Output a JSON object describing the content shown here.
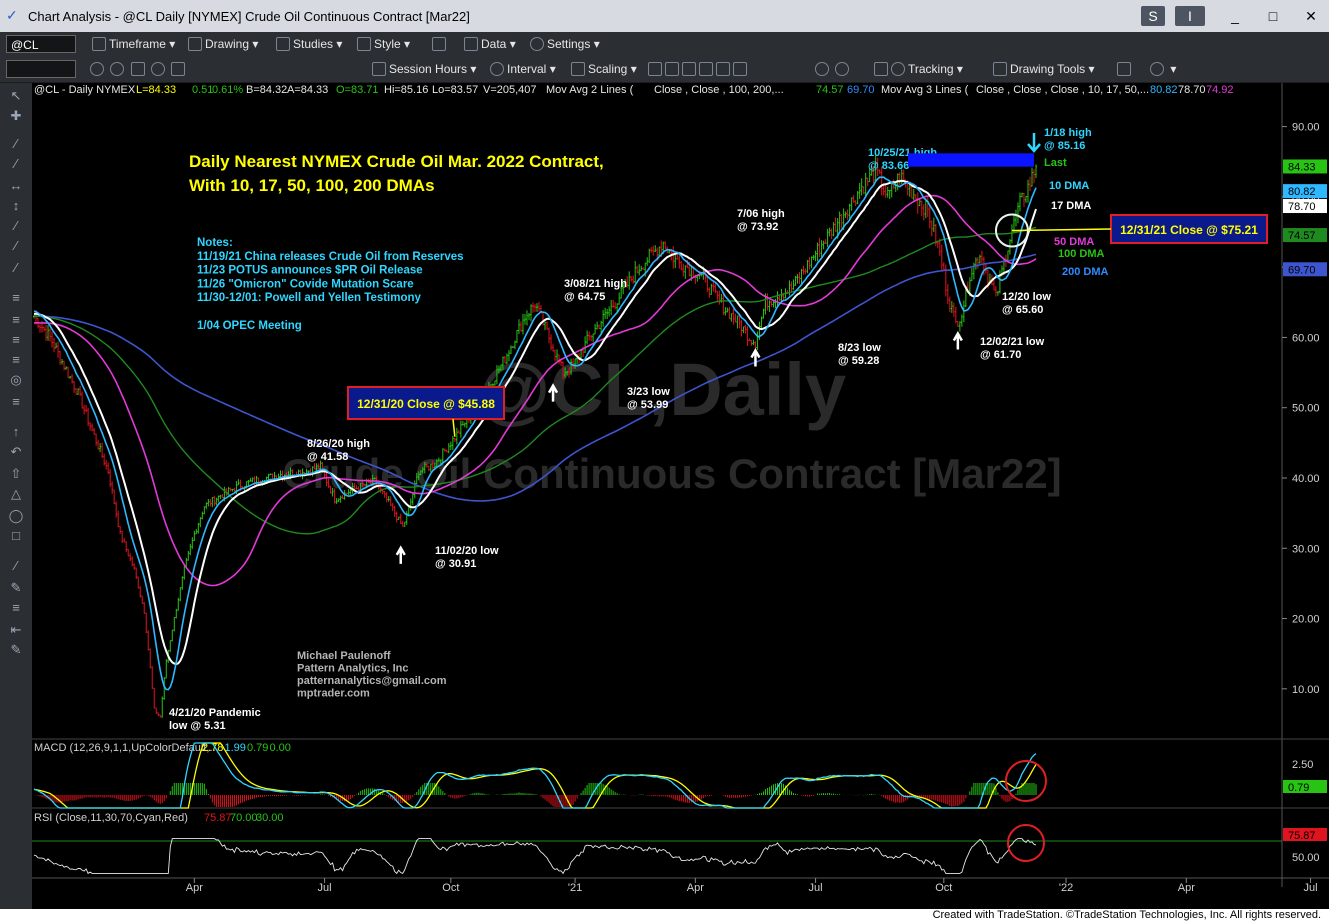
{
  "window": {
    "title": "Chart Analysis - @CL Daily [NYMEX] Crude Oil Continuous Contract [Mar22]",
    "buttons": [
      "S",
      "I",
      "_",
      "□",
      "✕"
    ]
  },
  "toolbar1": {
    "symbol": "@CL",
    "timeframe": "Timeframe",
    "drawing": "Drawing",
    "studies": "Studies",
    "style": "Style",
    "data": "Data",
    "settings": "Settings"
  },
  "toolbar2": {
    "session_hours": "Session Hours",
    "interval": "Interval",
    "scaling": "Scaling",
    "tracking": "Tracking",
    "drawing_tools": "Drawing Tools"
  },
  "status_bar": "Created with TradeStation. ©TradeStation Technologies, Inc. All rights reserved.",
  "colors": {
    "price_up": "#27c414",
    "price_down": "#e0141e",
    "dma10": "#2fb7ff",
    "dma17": "#ffffff",
    "dma50": "#e23ad7",
    "dma100": "#1f8a1f",
    "dma200": "#3d56cf",
    "annotation_yellow": "#ffff00",
    "annotation_cyan": "#2fd6ff"
  },
  "chart_data": {
    "type": "line",
    "info_line": {
      "symbol": "@CL - Daily  NYMEX",
      "last": "L=84.33",
      "change": "0.51",
      "pct": "0.61%",
      "bid": "B=84.32",
      "ask": "A=84.33",
      "open": "O=83.71",
      "high": "Hi=85.16",
      "low": "Lo=83.57",
      "volume": "V=205,407",
      "ma2": "Mov Avg 2 Lines (",
      "ma2_params": "Close ,      Close ,  100,  200,...",
      "ma2_v1": "74.57",
      "ma2_v2": "69.70",
      "ma3": "Mov Avg 3 Lines (",
      "ma3_params": "Close ,   Close ,   Close ,  10, 17, 50,...",
      "ma3_v1": "80.82",
      "ma3_v2": "78.70",
      "ma3_v3": "74.92"
    },
    "watermark": {
      "line1": "@CL,Daily",
      "line2": "Crude Oil Continuous Contract [Mar22]"
    },
    "title": "Daily Nearest NYMEX Crude Oil Mar. 2022 Contract,",
    "subtitle": "With 10, 17, 50, 100, 200 DMAs",
    "notes": [
      "Notes:",
      "11/19/21 China releases Crude Oil from Reserves",
      "11/23 POTUS announces $PR Oil Release",
      "11/26 \"Omicron\" Covide Mutation Scare",
      "11/30-12/01: Powell and Yellen Testimony",
      "",
      "1/04 OPEC Meeting"
    ],
    "author": [
      "Michael Paulenoff",
      "Pattern Analytics, Inc",
      "patternanalytics@gmail.com",
      "mptrader.com"
    ],
    "x_tick_labels": [
      "Apr",
      "Jul",
      "Oct",
      "'21",
      "Apr",
      "Jul",
      "Oct",
      "'22",
      "Apr",
      "Jul"
    ],
    "x_tick_idx": [
      80,
      145,
      208,
      270,
      330,
      390,
      454,
      515,
      575,
      637
    ],
    "y_ticks": [
      10.0,
      20.0,
      30.0,
      40.0,
      50.0,
      60.0,
      70.0,
      80.0,
      90.0
    ],
    "ylim": [
      3.0,
      94.5
    ],
    "anchors": [
      [
        0,
        63
      ],
      [
        8,
        60
      ],
      [
        15,
        56
      ],
      [
        22,
        52
      ],
      [
        30,
        46
      ],
      [
        37,
        41
      ],
      [
        43,
        32
      ],
      [
        50,
        27
      ],
      [
        55,
        21
      ],
      [
        58,
        13
      ],
      [
        60,
        7
      ],
      [
        63,
        6.0
      ],
      [
        66,
        14
      ],
      [
        70,
        20
      ],
      [
        75,
        27
      ],
      [
        80,
        32
      ],
      [
        85,
        36
      ],
      [
        93,
        37.5
      ],
      [
        103,
        39
      ],
      [
        113,
        39.8
      ],
      [
        123,
        40.5
      ],
      [
        136,
        41
      ],
      [
        143,
        41.6
      ],
      [
        150,
        37
      ],
      [
        160,
        38.5
      ],
      [
        170,
        39.5
      ],
      [
        178,
        36
      ],
      [
        184,
        33
      ],
      [
        187,
        35.5
      ],
      [
        192,
        41
      ],
      [
        200,
        42
      ],
      [
        210,
        45.8
      ],
      [
        225,
        52
      ],
      [
        235,
        57
      ],
      [
        245,
        63
      ],
      [
        250,
        64.8
      ],
      [
        257,
        60
      ],
      [
        264,
        55
      ],
      [
        269,
        56
      ],
      [
        277,
        60
      ],
      [
        290,
        65
      ],
      [
        302,
        70
      ],
      [
        314,
        73.5
      ],
      [
        320,
        71
      ],
      [
        332,
        69
      ],
      [
        345,
        64
      ],
      [
        352,
        62
      ],
      [
        357,
        60
      ],
      [
        360,
        59.3
      ],
      [
        365,
        65
      ],
      [
        378,
        67
      ],
      [
        390,
        72
      ],
      [
        400,
        76
      ],
      [
        412,
        81
      ],
      [
        420,
        83.7
      ],
      [
        426,
        80
      ],
      [
        432,
        83
      ],
      [
        440,
        80
      ],
      [
        446,
        78
      ],
      [
        452,
        72
      ],
      [
        456,
        66
      ],
      [
        460,
        62
      ],
      [
        463,
        63.5
      ],
      [
        467,
        69
      ],
      [
        472,
        72
      ],
      [
        477,
        68
      ],
      [
        480,
        65.6
      ],
      [
        485,
        72
      ],
      [
        488,
        75.21
      ],
      [
        492,
        79
      ],
      [
        497,
        82
      ],
      [
        500,
        84.33
      ]
    ],
    "bars_count": 501,
    "series": [
      {
        "name": "10 DMA",
        "last": 80.82
      },
      {
        "name": "17 DMA",
        "last": 78.7
      },
      {
        "name": "50 DMA",
        "last": 74.92
      },
      {
        "name": "100 DMA",
        "last": 74.57
      },
      {
        "name": "200 DMA",
        "last": 69.7
      }
    ],
    "right_badges": [
      "84.33",
      "80.82",
      "78.70",
      "74.57",
      "69.70"
    ],
    "annotations": [
      {
        "text": [
          "10/25/21 high",
          "@ 83.66"
        ],
        "color": "cyan"
      },
      {
        "text": [
          "1/18 high",
          "@ 85.16"
        ],
        "color": "cyan"
      },
      {
        "text": [
          "Last"
        ],
        "color": "green"
      },
      {
        "text": [
          "10 DMA"
        ],
        "color": "cyan"
      },
      {
        "text": [
          "17 DMA"
        ],
        "color": "white"
      },
      {
        "text": [
          "50 DMA"
        ],
        "color": "magenta"
      },
      {
        "text": [
          "100 DMA"
        ],
        "color": "green"
      },
      {
        "text": [
          "200 DMA"
        ],
        "color": "blue"
      },
      {
        "text": [
          "7/06 high",
          "@ 73.92"
        ],
        "color": "white"
      },
      {
        "text": [
          "3/08/21 high",
          "@ 64.75"
        ],
        "color": "white"
      },
      {
        "text": [
          "3/23 low",
          "@ 53.99"
        ],
        "color": "white"
      },
      {
        "text": [
          "8/23 low",
          "@ 59.28"
        ],
        "color": "white"
      },
      {
        "text": [
          "12/20 low",
          "@ 65.60"
        ],
        "color": "white"
      },
      {
        "text": [
          "12/02/21 low",
          "@ 61.70"
        ],
        "color": "white"
      },
      {
        "text": [
          "8/26/20 high",
          "@ 41.58"
        ],
        "color": "white"
      },
      {
        "text": [
          "11/02/20 low",
          "@ 30.91"
        ],
        "color": "white"
      },
      {
        "text": [
          "4/21/20 Pandemic",
          "low @ 5.31"
        ],
        "color": "white"
      }
    ],
    "boxes": [
      "12/31/20 Close @ $45.88",
      "12/31/21 Close @ $75.21"
    ],
    "macd": {
      "label": "MACD (12,26,9,1,1,UpColorDefault,...",
      "values": [
        "2.78",
        "1.99",
        "0.79",
        "0.00"
      ],
      "y_ticks": [
        "2.50"
      ],
      "badge": "0.79"
    },
    "rsi": {
      "label": "RSI (Close,11,30,70,Cyan,Red)",
      "values": [
        "75.87",
        "70.00",
        "30.00"
      ],
      "y_ticks": [
        "50.00"
      ],
      "badge": "75.87"
    }
  }
}
